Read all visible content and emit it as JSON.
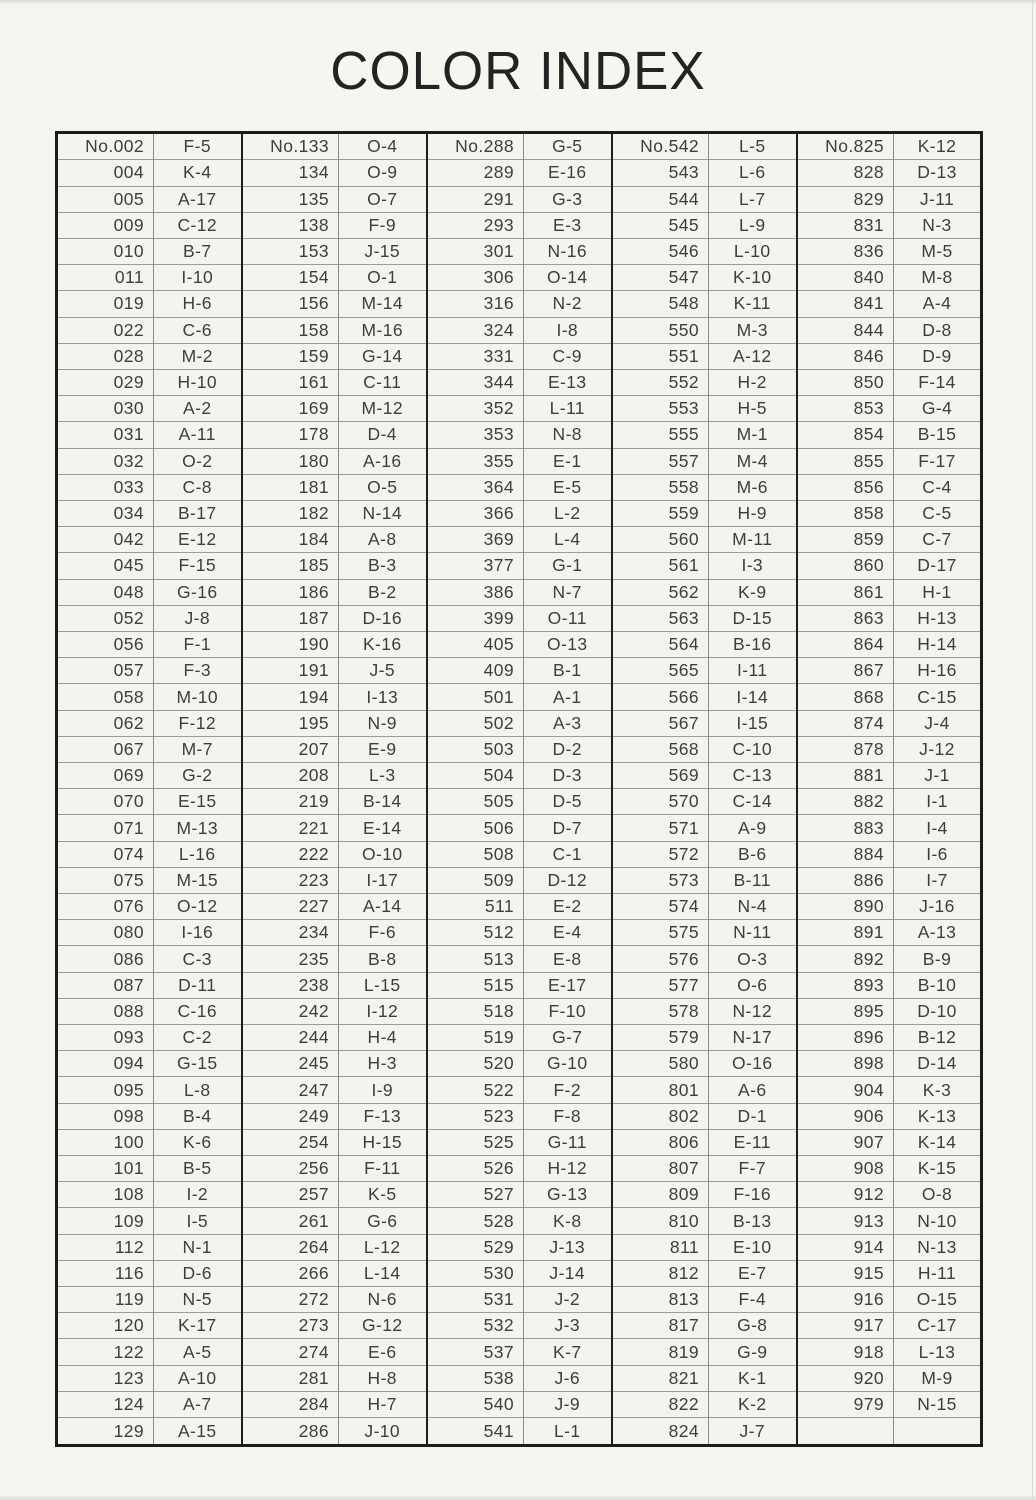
{
  "title": "COLOR INDEX",
  "table": {
    "rows": [
      [
        [
          "No.002",
          "F-5"
        ],
        [
          "No.133",
          "O-4"
        ],
        [
          "No.288",
          "G-5"
        ],
        [
          "No.542",
          "L-5"
        ],
        [
          "No.825",
          "K-12"
        ]
      ],
      [
        [
          "004",
          "K-4"
        ],
        [
          "134",
          "O-9"
        ],
        [
          "289",
          "E-16"
        ],
        [
          "543",
          "L-6"
        ],
        [
          "828",
          "D-13"
        ]
      ],
      [
        [
          "005",
          "A-17"
        ],
        [
          "135",
          "O-7"
        ],
        [
          "291",
          "G-3"
        ],
        [
          "544",
          "L-7"
        ],
        [
          "829",
          "J-11"
        ]
      ],
      [
        [
          "009",
          "C-12"
        ],
        [
          "138",
          "F-9"
        ],
        [
          "293",
          "E-3"
        ],
        [
          "545",
          "L-9"
        ],
        [
          "831",
          "N-3"
        ]
      ],
      [
        [
          "010",
          "B-7"
        ],
        [
          "153",
          "J-15"
        ],
        [
          "301",
          "N-16"
        ],
        [
          "546",
          "L-10"
        ],
        [
          "836",
          "M-5"
        ]
      ],
      [
        [
          "011",
          "I-10"
        ],
        [
          "154",
          "O-1"
        ],
        [
          "306",
          "O-14"
        ],
        [
          "547",
          "K-10"
        ],
        [
          "840",
          "M-8"
        ]
      ],
      [
        [
          "019",
          "H-6"
        ],
        [
          "156",
          "M-14"
        ],
        [
          "316",
          "N-2"
        ],
        [
          "548",
          "K-11"
        ],
        [
          "841",
          "A-4"
        ]
      ],
      [
        [
          "022",
          "C-6"
        ],
        [
          "158",
          "M-16"
        ],
        [
          "324",
          "I-8"
        ],
        [
          "550",
          "M-3"
        ],
        [
          "844",
          "D-8"
        ]
      ],
      [
        [
          "028",
          "M-2"
        ],
        [
          "159",
          "G-14"
        ],
        [
          "331",
          "C-9"
        ],
        [
          "551",
          "A-12"
        ],
        [
          "846",
          "D-9"
        ]
      ],
      [
        [
          "029",
          "H-10"
        ],
        [
          "161",
          "C-11"
        ],
        [
          "344",
          "E-13"
        ],
        [
          "552",
          "H-2"
        ],
        [
          "850",
          "F-14"
        ]
      ],
      [
        [
          "030",
          "A-2"
        ],
        [
          "169",
          "M-12"
        ],
        [
          "352",
          "L-11"
        ],
        [
          "553",
          "H-5"
        ],
        [
          "853",
          "G-4"
        ]
      ],
      [
        [
          "031",
          "A-11"
        ],
        [
          "178",
          "D-4"
        ],
        [
          "353",
          "N-8"
        ],
        [
          "555",
          "M-1"
        ],
        [
          "854",
          "B-15"
        ]
      ],
      [
        [
          "032",
          "O-2"
        ],
        [
          "180",
          "A-16"
        ],
        [
          "355",
          "E-1"
        ],
        [
          "557",
          "M-4"
        ],
        [
          "855",
          "F-17"
        ]
      ],
      [
        [
          "033",
          "C-8"
        ],
        [
          "181",
          "O-5"
        ],
        [
          "364",
          "E-5"
        ],
        [
          "558",
          "M-6"
        ],
        [
          "856",
          "C-4"
        ]
      ],
      [
        [
          "034",
          "B-17"
        ],
        [
          "182",
          "N-14"
        ],
        [
          "366",
          "L-2"
        ],
        [
          "559",
          "H-9"
        ],
        [
          "858",
          "C-5"
        ]
      ],
      [
        [
          "042",
          "E-12"
        ],
        [
          "184",
          "A-8"
        ],
        [
          "369",
          "L-4"
        ],
        [
          "560",
          "M-11"
        ],
        [
          "859",
          "C-7"
        ]
      ],
      [
        [
          "045",
          "F-15"
        ],
        [
          "185",
          "B-3"
        ],
        [
          "377",
          "G-1"
        ],
        [
          "561",
          "I-3"
        ],
        [
          "860",
          "D-17"
        ]
      ],
      [
        [
          "048",
          "G-16"
        ],
        [
          "186",
          "B-2"
        ],
        [
          "386",
          "N-7"
        ],
        [
          "562",
          "K-9"
        ],
        [
          "861",
          "H-1"
        ]
      ],
      [
        [
          "052",
          "J-8"
        ],
        [
          "187",
          "D-16"
        ],
        [
          "399",
          "O-11"
        ],
        [
          "563",
          "D-15"
        ],
        [
          "863",
          "H-13"
        ]
      ],
      [
        [
          "056",
          "F-1"
        ],
        [
          "190",
          "K-16"
        ],
        [
          "405",
          "O-13"
        ],
        [
          "564",
          "B-16"
        ],
        [
          "864",
          "H-14"
        ]
      ],
      [
        [
          "057",
          "F-3"
        ],
        [
          "191",
          "J-5"
        ],
        [
          "409",
          "B-1"
        ],
        [
          "565",
          "I-11"
        ],
        [
          "867",
          "H-16"
        ]
      ],
      [
        [
          "058",
          "M-10"
        ],
        [
          "194",
          "I-13"
        ],
        [
          "501",
          "A-1"
        ],
        [
          "566",
          "I-14"
        ],
        [
          "868",
          "C-15"
        ]
      ],
      [
        [
          "062",
          "F-12"
        ],
        [
          "195",
          "N-9"
        ],
        [
          "502",
          "A-3"
        ],
        [
          "567",
          "I-15"
        ],
        [
          "874",
          "J-4"
        ]
      ],
      [
        [
          "067",
          "M-7"
        ],
        [
          "207",
          "E-9"
        ],
        [
          "503",
          "D-2"
        ],
        [
          "568",
          "C-10"
        ],
        [
          "878",
          "J-12"
        ]
      ],
      [
        [
          "069",
          "G-2"
        ],
        [
          "208",
          "L-3"
        ],
        [
          "504",
          "D-3"
        ],
        [
          "569",
          "C-13"
        ],
        [
          "881",
          "J-1"
        ]
      ],
      [
        [
          "070",
          "E-15"
        ],
        [
          "219",
          "B-14"
        ],
        [
          "505",
          "D-5"
        ],
        [
          "570",
          "C-14"
        ],
        [
          "882",
          "I-1"
        ]
      ],
      [
        [
          "071",
          "M-13"
        ],
        [
          "221",
          "E-14"
        ],
        [
          "506",
          "D-7"
        ],
        [
          "571",
          "A-9"
        ],
        [
          "883",
          "I-4"
        ]
      ],
      [
        [
          "074",
          "L-16"
        ],
        [
          "222",
          "O-10"
        ],
        [
          "508",
          "C-1"
        ],
        [
          "572",
          "B-6"
        ],
        [
          "884",
          "I-6"
        ]
      ],
      [
        [
          "075",
          "M-15"
        ],
        [
          "223",
          "I-17"
        ],
        [
          "509",
          "D-12"
        ],
        [
          "573",
          "B-11"
        ],
        [
          "886",
          "I-7"
        ]
      ],
      [
        [
          "076",
          "O-12"
        ],
        [
          "227",
          "A-14"
        ],
        [
          "511",
          "E-2"
        ],
        [
          "574",
          "N-4"
        ],
        [
          "890",
          "J-16"
        ]
      ],
      [
        [
          "080",
          "I-16"
        ],
        [
          "234",
          "F-6"
        ],
        [
          "512",
          "E-4"
        ],
        [
          "575",
          "N-11"
        ],
        [
          "891",
          "A-13"
        ]
      ],
      [
        [
          "086",
          "C-3"
        ],
        [
          "235",
          "B-8"
        ],
        [
          "513",
          "E-8"
        ],
        [
          "576",
          "O-3"
        ],
        [
          "892",
          "B-9"
        ]
      ],
      [
        [
          "087",
          "D-11"
        ],
        [
          "238",
          "L-15"
        ],
        [
          "515",
          "E-17"
        ],
        [
          "577",
          "O-6"
        ],
        [
          "893",
          "B-10"
        ]
      ],
      [
        [
          "088",
          "C-16"
        ],
        [
          "242",
          "I-12"
        ],
        [
          "518",
          "F-10"
        ],
        [
          "578",
          "N-12"
        ],
        [
          "895",
          "D-10"
        ]
      ],
      [
        [
          "093",
          "C-2"
        ],
        [
          "244",
          "H-4"
        ],
        [
          "519",
          "G-7"
        ],
        [
          "579",
          "N-17"
        ],
        [
          "896",
          "B-12"
        ]
      ],
      [
        [
          "094",
          "G-15"
        ],
        [
          "245",
          "H-3"
        ],
        [
          "520",
          "G-10"
        ],
        [
          "580",
          "O-16"
        ],
        [
          "898",
          "D-14"
        ]
      ],
      [
        [
          "095",
          "L-8"
        ],
        [
          "247",
          "I-9"
        ],
        [
          "522",
          "F-2"
        ],
        [
          "801",
          "A-6"
        ],
        [
          "904",
          "K-3"
        ]
      ],
      [
        [
          "098",
          "B-4"
        ],
        [
          "249",
          "F-13"
        ],
        [
          "523",
          "F-8"
        ],
        [
          "802",
          "D-1"
        ],
        [
          "906",
          "K-13"
        ]
      ],
      [
        [
          "100",
          "K-6"
        ],
        [
          "254",
          "H-15"
        ],
        [
          "525",
          "G-11"
        ],
        [
          "806",
          "E-11"
        ],
        [
          "907",
          "K-14"
        ]
      ],
      [
        [
          "101",
          "B-5"
        ],
        [
          "256",
          "F-11"
        ],
        [
          "526",
          "H-12"
        ],
        [
          "807",
          "F-7"
        ],
        [
          "908",
          "K-15"
        ]
      ],
      [
        [
          "108",
          "I-2"
        ],
        [
          "257",
          "K-5"
        ],
        [
          "527",
          "G-13"
        ],
        [
          "809",
          "F-16"
        ],
        [
          "912",
          "O-8"
        ]
      ],
      [
        [
          "109",
          "I-5"
        ],
        [
          "261",
          "G-6"
        ],
        [
          "528",
          "K-8"
        ],
        [
          "810",
          "B-13"
        ],
        [
          "913",
          "N-10"
        ]
      ],
      [
        [
          "112",
          "N-1"
        ],
        [
          "264",
          "L-12"
        ],
        [
          "529",
          "J-13"
        ],
        [
          "811",
          "E-10"
        ],
        [
          "914",
          "N-13"
        ]
      ],
      [
        [
          "116",
          "D-6"
        ],
        [
          "266",
          "L-14"
        ],
        [
          "530",
          "J-14"
        ],
        [
          "812",
          "E-7"
        ],
        [
          "915",
          "H-11"
        ]
      ],
      [
        [
          "119",
          "N-5"
        ],
        [
          "272",
          "N-6"
        ],
        [
          "531",
          "J-2"
        ],
        [
          "813",
          "F-4"
        ],
        [
          "916",
          "O-15"
        ]
      ],
      [
        [
          "120",
          "K-17"
        ],
        [
          "273",
          "G-12"
        ],
        [
          "532",
          "J-3"
        ],
        [
          "817",
          "G-8"
        ],
        [
          "917",
          "C-17"
        ]
      ],
      [
        [
          "122",
          "A-5"
        ],
        [
          "274",
          "E-6"
        ],
        [
          "537",
          "K-7"
        ],
        [
          "819",
          "G-9"
        ],
        [
          "918",
          "L-13"
        ]
      ],
      [
        [
          "123",
          "A-10"
        ],
        [
          "281",
          "H-8"
        ],
        [
          "538",
          "J-6"
        ],
        [
          "821",
          "K-1"
        ],
        [
          "920",
          "M-9"
        ]
      ],
      [
        [
          "124",
          "A-7"
        ],
        [
          "284",
          "H-7"
        ],
        [
          "540",
          "J-9"
        ],
        [
          "822",
          "K-2"
        ],
        [
          "979",
          "N-15"
        ]
      ],
      [
        [
          "129",
          "A-15"
        ],
        [
          "286",
          "J-10"
        ],
        [
          "541",
          "L-1"
        ],
        [
          "824",
          "J-7"
        ],
        [
          "",
          ""
        ]
      ]
    ]
  }
}
